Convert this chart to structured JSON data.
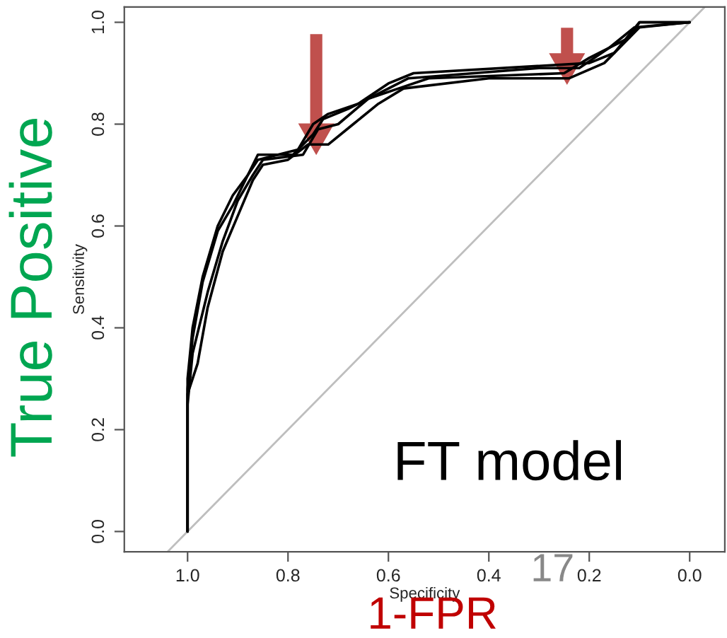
{
  "chart_data": {
    "type": "line",
    "xlabel": "Specificity",
    "ylabel": "Sensitivity",
    "annotations": [
      "True Positive",
      "FT model",
      "17",
      "1-FPR"
    ],
    "xlim": [
      1.126,
      -0.07
    ],
    "ylim": [
      -0.04,
      1.03
    ],
    "xticks": [
      {
        "value": 1.0,
        "label": "1.0"
      },
      {
        "value": 0.8,
        "label": "0.8"
      },
      {
        "value": 0.6,
        "label": "0.6"
      },
      {
        "value": 0.4,
        "label": "0.4"
      },
      {
        "value": 0.2,
        "label": "0.2"
      },
      {
        "value": 0.0,
        "label": "0.0"
      }
    ],
    "yticks": [
      {
        "value": 0.0,
        "label": "0.0"
      },
      {
        "value": 0.2,
        "label": "0.2"
      },
      {
        "value": 0.4,
        "label": "0.4"
      },
      {
        "value": 0.6,
        "label": "0.6"
      },
      {
        "value": 0.8,
        "label": "0.8"
      },
      {
        "value": 1.0,
        "label": "1.0"
      }
    ],
    "grid": false,
    "legend": false,
    "marker": "none",
    "line_style": "solid",
    "series": [
      {
        "color": "#bebebe",
        "x": [
          1.04,
          -0.03
        ],
        "values": [
          -0.04,
          1.03
        ]
      },
      {
        "color": "#000000",
        "x": [
          1,
          1,
          0.99,
          0.97,
          0.94,
          0.91,
          0.88,
          0.86,
          0.78,
          0.75,
          0.72,
          0.66,
          0.6,
          0.55,
          0.2,
          0.15,
          0.1,
          0
        ],
        "values": [
          0,
          0.3,
          0.4,
          0.5,
          0.6,
          0.66,
          0.7,
          0.73,
          0.75,
          0.8,
          0.82,
          0.84,
          0.88,
          0.9,
          0.92,
          0.94,
          1.0,
          1.0
        ]
      },
      {
        "color": "#000000",
        "x": [
          1,
          1,
          0.99,
          0.96,
          0.93,
          0.9,
          0.87,
          0.85,
          0.77,
          0.74,
          0.7,
          0.64,
          0.58,
          0.52,
          0.25,
          0.2,
          0.12,
          0.1,
          0
        ],
        "values": [
          0,
          0.25,
          0.35,
          0.47,
          0.57,
          0.65,
          0.7,
          0.73,
          0.74,
          0.79,
          0.8,
          0.85,
          0.87,
          0.89,
          0.9,
          0.93,
          0.97,
          1.0,
          1.0
        ]
      },
      {
        "color": "#000000",
        "x": [
          1,
          1,
          0.98,
          0.96,
          0.93,
          0.9,
          0.87,
          0.85,
          0.8,
          0.76,
          0.72,
          0.67,
          0.62,
          0.57,
          0.4,
          0.24,
          0.17,
          0.12,
          0.1,
          0
        ],
        "values": [
          0,
          0.27,
          0.33,
          0.44,
          0.55,
          0.62,
          0.69,
          0.72,
          0.73,
          0.76,
          0.76,
          0.8,
          0.84,
          0.87,
          0.89,
          0.89,
          0.92,
          0.97,
          0.99,
          1.0
        ]
      },
      {
        "color": "#000000",
        "x": [
          1,
          1,
          0.99,
          0.97,
          0.94,
          0.91,
          0.88,
          0.86,
          0.79,
          0.75,
          0.73,
          0.68,
          0.62,
          0.56,
          0.3,
          0.22,
          0.16,
          0.11,
          0
        ],
        "values": [
          0,
          0.28,
          0.38,
          0.49,
          0.59,
          0.64,
          0.7,
          0.74,
          0.74,
          0.78,
          0.81,
          0.83,
          0.86,
          0.89,
          0.91,
          0.91,
          0.95,
          0.99,
          1.0
        ]
      }
    ]
  }
}
